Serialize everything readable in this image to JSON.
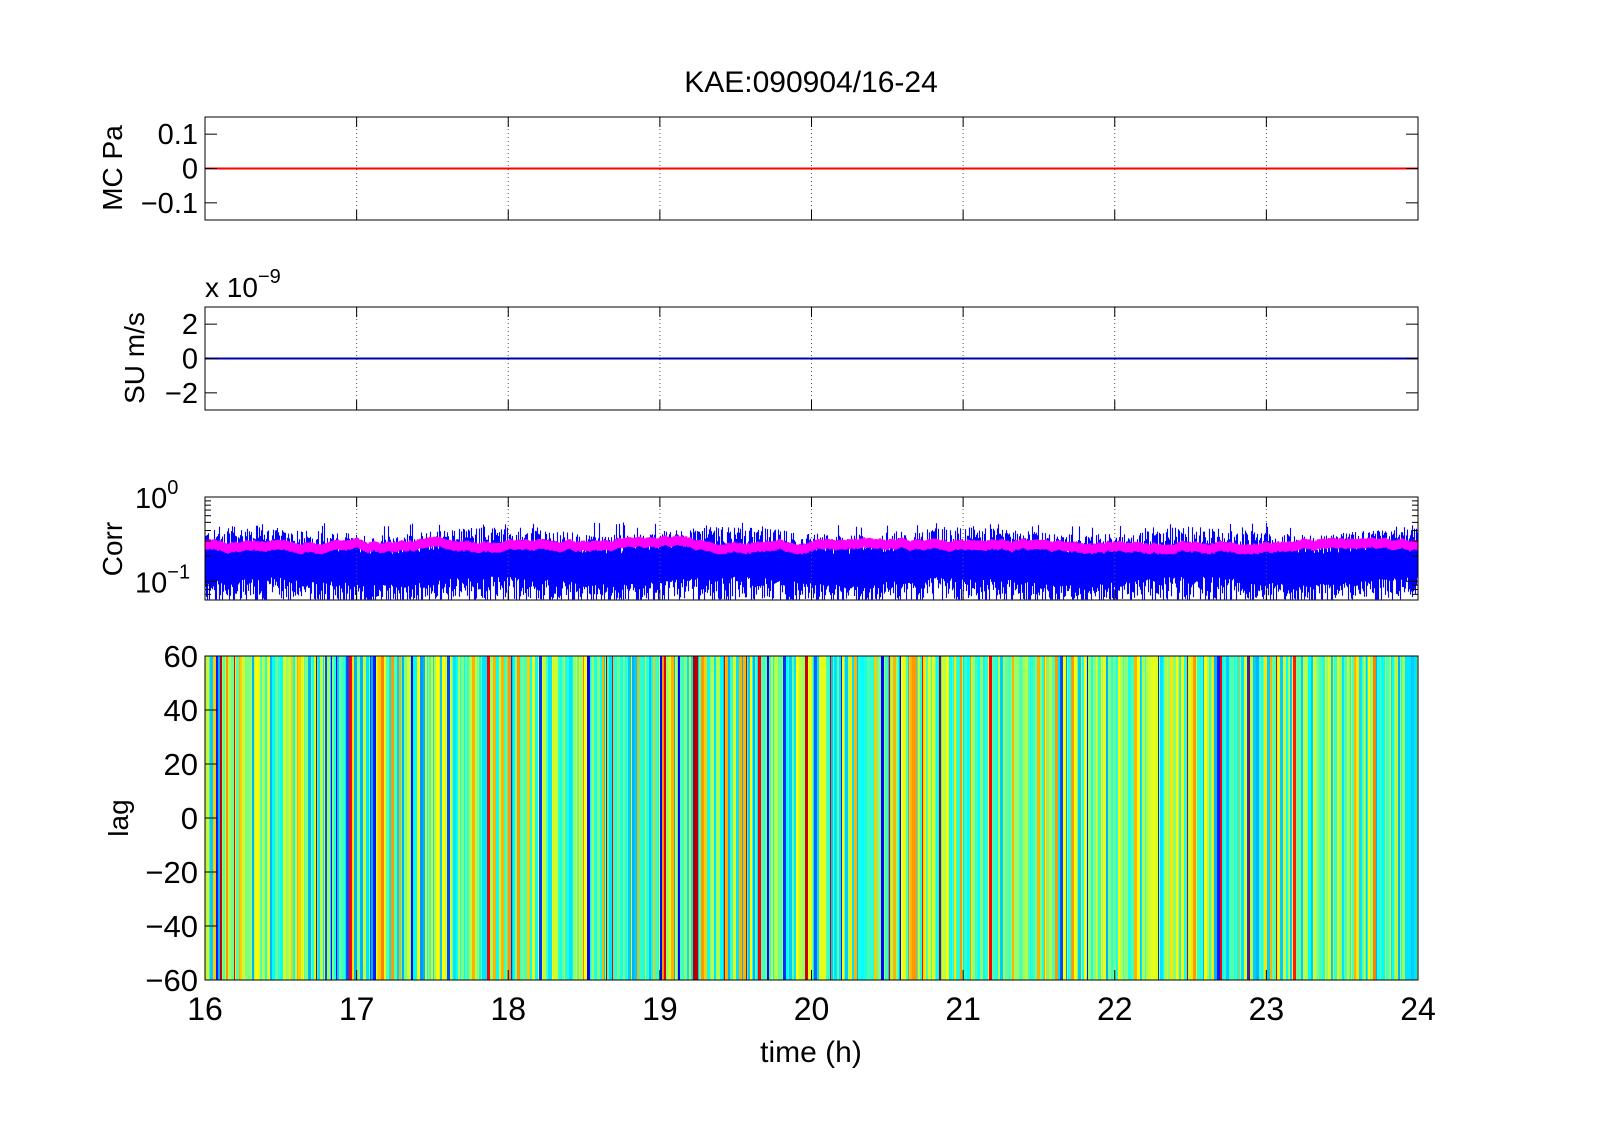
{
  "figure": {
    "title": "KAE:090904/16-24"
  },
  "chart_data": [
    {
      "type": "line",
      "ylabel": "MC Pa",
      "xlim": [
        16,
        24
      ],
      "ylim": [
        -0.15,
        0.15
      ],
      "yticks": [
        "0.1",
        "0",
        "−0.1"
      ],
      "ytick_values": [
        0.1,
        0,
        -0.1
      ],
      "grid": "x-dotted",
      "series": [
        {
          "x": [
            16,
            24
          ],
          "y": [
            0,
            0
          ],
          "color": "#ff0000"
        }
      ]
    },
    {
      "type": "line",
      "ylabel": "SU m/s",
      "scale_multiplier": {
        "base": "x 10",
        "exponent": "−9"
      },
      "xlim": [
        16,
        24
      ],
      "ylim": [
        -3,
        3
      ],
      "yticks": [
        "2",
        "0",
        "−2"
      ],
      "ytick_values": [
        2,
        0,
        -2
      ],
      "grid": "x-dotted",
      "series": [
        {
          "x": [
            16,
            24
          ],
          "y": [
            0,
            0
          ],
          "color": "#0000aa"
        }
      ]
    },
    {
      "type": "line",
      "ylabel": "Corr",
      "yscale": "log",
      "xlim": [
        16,
        24
      ],
      "ylim": [
        0.06,
        1
      ],
      "yticks": [
        {
          "base": "10",
          "exponent": "0",
          "value": 1
        },
        {
          "base": "10",
          "exponent": "−1",
          "value": 0.1
        }
      ],
      "grid": "x-dotted",
      "series": [
        {
          "kind": "noisy-band",
          "color": "#0000ff",
          "typical": 0.22,
          "low": 0.06,
          "high": 0.5
        },
        {
          "kind": "smoothed-band",
          "color": "#ff00ff",
          "typical": 0.27,
          "low": 0.22,
          "high": 0.33
        }
      ]
    },
    {
      "type": "heatmap",
      "xlabel": "time (h)",
      "ylabel": "lag",
      "xlim": [
        16,
        24
      ],
      "ylim": [
        -60,
        60
      ],
      "xticks": [
        "16",
        "17",
        "18",
        "19",
        "20",
        "21",
        "22",
        "23",
        "24"
      ],
      "xtick_values": [
        16,
        17,
        18,
        19,
        20,
        21,
        22,
        23,
        24
      ],
      "yticks": [
        "60",
        "40",
        "20",
        "0",
        "−20",
        "−40",
        "−60"
      ],
      "ytick_values": [
        60,
        40,
        20,
        0,
        -20,
        -40,
        -60
      ],
      "colormap": "jet",
      "pattern": "vertical stripes, mostly green/yellow"
    }
  ]
}
